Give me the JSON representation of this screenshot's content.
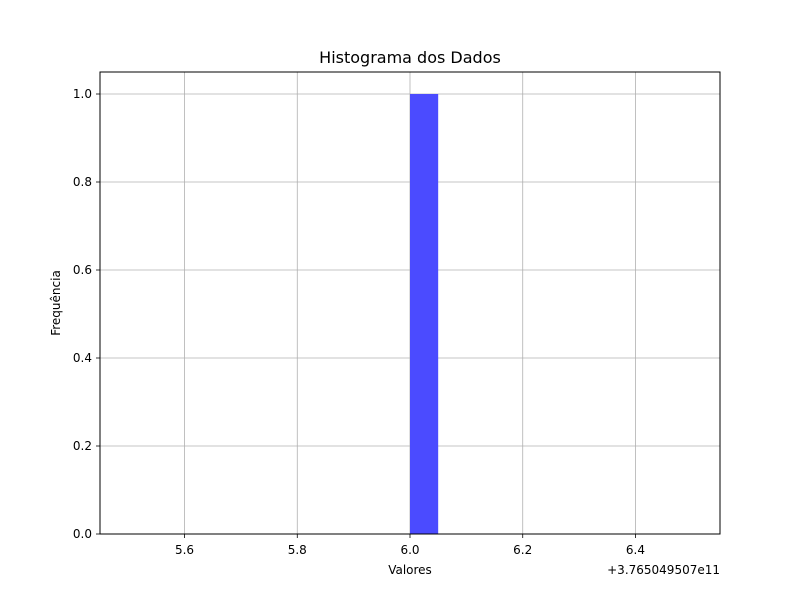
{
  "chart_data": {
    "type": "bar",
    "title": "Histograma dos Dados",
    "xlabel": "Valores",
    "ylabel": "Frequência",
    "x_offset_label": "+3.765049507e11",
    "xlim": [
      5.45,
      6.55
    ],
    "ylim": [
      0,
      1.05
    ],
    "x_ticks": [
      5.6,
      5.8,
      6.0,
      6.2,
      6.4
    ],
    "x_tick_labels": [
      "5.6",
      "5.8",
      "6.0",
      "6.2",
      "6.4"
    ],
    "y_ticks": [
      0,
      0.2,
      0.4,
      0.6,
      0.8,
      1.0
    ],
    "y_tick_labels": [
      "0.0",
      "0.2",
      "0.4",
      "0.6",
      "0.8",
      "1.0"
    ],
    "bins": [
      {
        "start": 6.0,
        "end": 6.05,
        "count": 1
      }
    ],
    "bar_color": "#4b4bff",
    "grid": true
  }
}
